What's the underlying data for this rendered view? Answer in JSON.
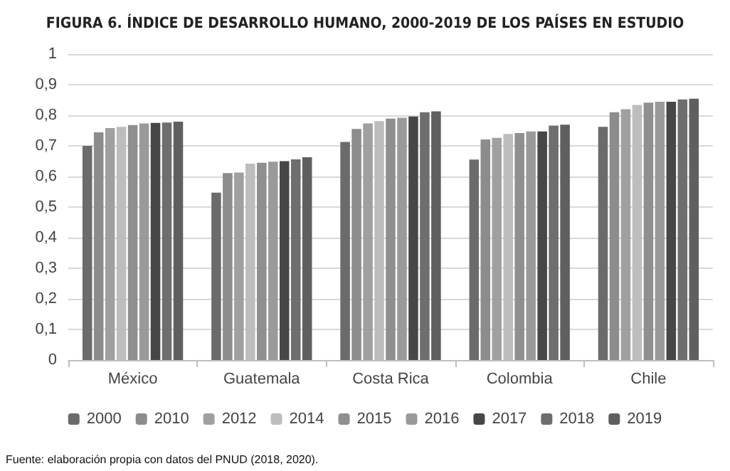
{
  "chart_data": {
    "type": "bar",
    "title": "FIGURA 6. ÍNDICE DE DESARROLLO HUMANO, 2000-2019 DE LOS PAÍSES EN ESTUDIO",
    "categories": [
      "México",
      "Guatemala",
      "Costa Rica",
      "Colombia",
      "Chile"
    ],
    "series": [
      {
        "name": "2000",
        "color": "#6b6b6b",
        "values": [
          0.7,
          0.547,
          0.713,
          0.655,
          0.762
        ]
      },
      {
        "name": "2010",
        "color": "#8c8c8c",
        "values": [
          0.744,
          0.611,
          0.755,
          0.721,
          0.81
        ]
      },
      {
        "name": "2012",
        "color": "#a0a0a0",
        "values": [
          0.758,
          0.613,
          0.773,
          0.726,
          0.82
        ]
      },
      {
        "name": "2014",
        "color": "#bdbdbd",
        "values": [
          0.762,
          0.642,
          0.781,
          0.739,
          0.834
        ]
      },
      {
        "name": "2015",
        "color": "#8f8f8f",
        "values": [
          0.768,
          0.645,
          0.789,
          0.742,
          0.841
        ]
      },
      {
        "name": "2016",
        "color": "#9a9a9a",
        "values": [
          0.773,
          0.648,
          0.792,
          0.747,
          0.844
        ]
      },
      {
        "name": "2017",
        "color": "#474747",
        "values": [
          0.775,
          0.65,
          0.796,
          0.747,
          0.844
        ]
      },
      {
        "name": "2018",
        "color": "#6e6e6e",
        "values": [
          0.776,
          0.656,
          0.81,
          0.766,
          0.852
        ]
      },
      {
        "name": "2019",
        "color": "#5f5f5f",
        "values": [
          0.779,
          0.663,
          0.813,
          0.769,
          0.854
        ]
      }
    ],
    "ylim": [
      0,
      1
    ],
    "yticks": [
      0,
      {
        "value": 0.1,
        "label": "0,1"
      },
      {
        "value": 0.2,
        "label": "0,2"
      },
      {
        "value": 0.3,
        "label": "0,3"
      },
      {
        "value": 0.4,
        "label": "0,4"
      },
      {
        "value": 0.5,
        "label": "0,5"
      },
      {
        "value": 0.6,
        "label": "0,6"
      },
      {
        "value": 0.7,
        "label": "0,7"
      },
      {
        "value": 0.8,
        "label": "0,8"
      },
      {
        "value": 0.9,
        "label": "0,9"
      },
      1
    ],
    "grid": "y",
    "legend": "bottom",
    "annotations": [
      "Fuente: elaboración propia con datos del PNUD (2018, 2020)."
    ]
  }
}
